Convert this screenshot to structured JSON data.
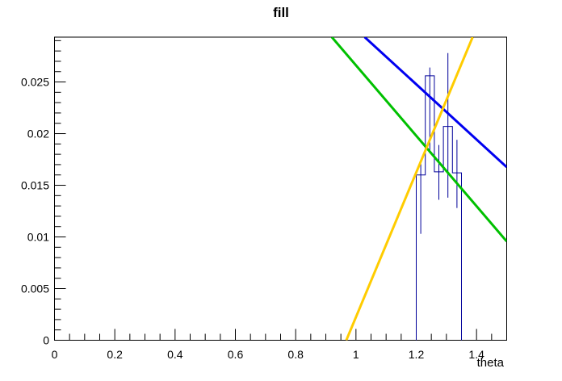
{
  "title": "fill",
  "axes": {
    "x": {
      "label": "theta",
      "tick_labels": [
        "0",
        "0.2",
        "0.4",
        "0.6",
        "0.8",
        "1",
        "1.2",
        "1.4"
      ]
    },
    "y": {
      "tick_labels": [
        "0",
        "0.005",
        "0.01",
        "0.015",
        "0.02",
        "0.025"
      ]
    }
  },
  "colors": {
    "frame": "#000000",
    "histogram": "#000099",
    "blue_line": "#0000f0",
    "green_line": "#00c000",
    "yellow_line": "#ffcc00",
    "background": "#ffffff"
  },
  "chart_data": {
    "type": "line",
    "title": "fill",
    "xlabel": "theta",
    "ylabel": "",
    "xlim": [
      0,
      1.5
    ],
    "ylim": [
      0,
      0.02934
    ],
    "grid": false,
    "legend": "none",
    "x_major_step": 0.2,
    "x_minor_divisions": 4,
    "y_major_step": 0.005,
    "y_minor_divisions": 5,
    "histogram": {
      "name": "data-histogram",
      "color": "#000099",
      "bin_edges": [
        1.2,
        1.23,
        1.26,
        1.29,
        1.32,
        1.35
      ],
      "values": [
        0.016,
        0.0256,
        0.0163,
        0.0207,
        0.0162
      ],
      "error_bars": [
        {
          "x": 1.215,
          "y_low": 0.0103,
          "y_high": 0.0171
        },
        {
          "x": 1.245,
          "y_low": 0.0181,
          "y_high": 0.0264
        },
        {
          "x": 1.275,
          "y_low": 0.0136,
          "y_high": 0.0189
        },
        {
          "x": 1.305,
          "y_low": 0.0138,
          "y_high": 0.0278
        },
        {
          "x": 1.335,
          "y_low": 0.0128,
          "y_high": 0.0194
        }
      ]
    },
    "series": [
      {
        "name": "blue-fit-line",
        "color": "#0000f0",
        "width": 3,
        "points": [
          [
            1.029,
            0.02934
          ],
          [
            1.5,
            0.01676
          ]
        ]
      },
      {
        "name": "green-fit-line",
        "color": "#00c000",
        "width": 3,
        "points": [
          [
            0.92,
            0.02934
          ],
          [
            1.5,
            0.00957
          ]
        ]
      },
      {
        "name": "yellow-fit-line",
        "color": "#ffcc00",
        "width": 3,
        "points": [
          [
            0.968,
            0.0
          ],
          [
            1.387,
            0.02934
          ]
        ]
      }
    ]
  }
}
